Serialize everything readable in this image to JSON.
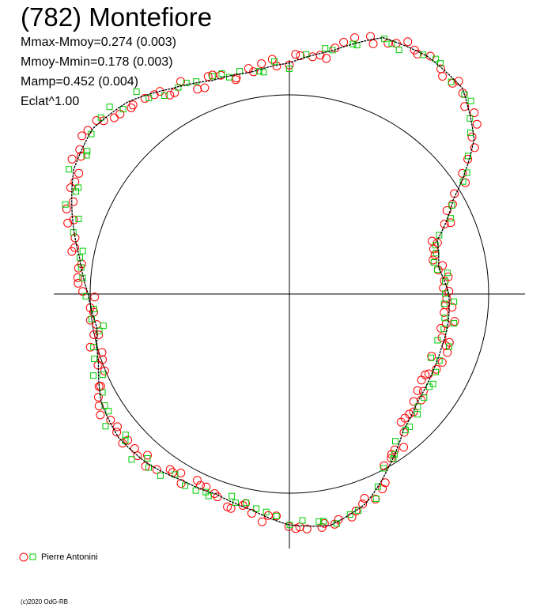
{
  "header": {
    "title": "(782) Montefiore",
    "stats": [
      "Mmax-Mmoy=0.274 (0.003)",
      "Mmoy-Mmin=0.178 (0.003)",
      "Mamp=0.452 (0.004)",
      "Eclat^1.00"
    ]
  },
  "legend": {
    "label": "Pierre Antonini"
  },
  "footer": {
    "credit": "(c)2020 OdG-RB"
  },
  "colors": {
    "series_red": "#ff0000",
    "series_green": "#00cc00",
    "axes": "#000000"
  },
  "chart_data": {
    "type": "scatter",
    "projection": "polar",
    "title": "(782) Montefiore",
    "grid": false,
    "legend_position": "bottom-left",
    "reference_circle": true,
    "theta_unit": "degrees (counter-clockwise from +x)",
    "model_curve_radius": [
      [
        0,
        0.8
      ],
      [
        10,
        0.76
      ],
      [
        20,
        0.79
      ],
      [
        30,
        0.95
      ],
      [
        40,
        1.21
      ],
      [
        50,
        1.35
      ],
      [
        60,
        1.38
      ],
      [
        70,
        1.37
      ],
      [
        80,
        1.24
      ],
      [
        90,
        1.16
      ],
      [
        100,
        1.13
      ],
      [
        110,
        1.14
      ],
      [
        120,
        1.19
      ],
      [
        130,
        1.26
      ],
      [
        140,
        1.29
      ],
      [
        150,
        1.25
      ],
      [
        160,
        1.16
      ],
      [
        170,
        1.07
      ],
      [
        180,
        1.01
      ],
      [
        190,
        0.98
      ],
      [
        200,
        1.02
      ],
      [
        210,
        1.09
      ],
      [
        220,
        1.12
      ],
      [
        230,
        1.11
      ],
      [
        240,
        1.08
      ],
      [
        250,
        1.07
      ],
      [
        260,
        1.1
      ],
      [
        270,
        1.16
      ],
      [
        280,
        1.18
      ],
      [
        290,
        1.12
      ],
      [
        300,
        1.0
      ],
      [
        310,
        0.89
      ],
      [
        320,
        0.84
      ],
      [
        330,
        0.82
      ],
      [
        340,
        0.81
      ],
      [
        350,
        0.81
      ],
      [
        360,
        0.8
      ]
    ],
    "series": [
      {
        "name": "Pierre Antonini",
        "marker": "circle",
        "color": "#ff0000",
        "points_per_degree": 0.5
      },
      {
        "name": "Pierre Antonini",
        "marker": "square",
        "color": "#00cc00",
        "points_per_degree": 0.33
      }
    ]
  }
}
